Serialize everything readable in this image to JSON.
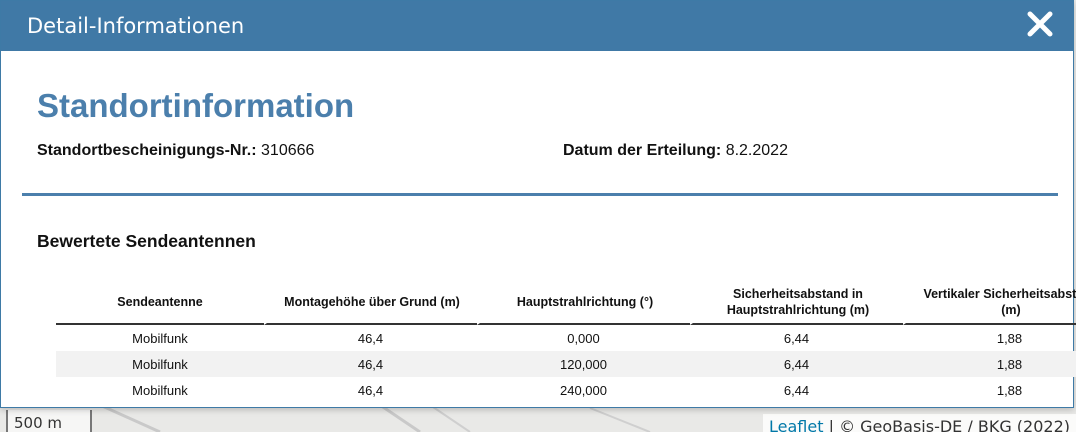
{
  "dialog": {
    "title": "Detail-Informationen",
    "heading": "Standortinformation",
    "certificate_label": "Standortbescheinigungs-Nr.:",
    "certificate_value": "310666",
    "date_label": "Datum der Erteilung:",
    "date_value": "8.2.2022",
    "section_title": "Bewertete Sendeantennen",
    "table": {
      "headers": [
        "Sendeantenne",
        "Montagehöhe über Grund (m)",
        "Hauptstrahlrichtung (°)",
        "Sicherheitsabstand in Hauptstrahlrichtung (m)",
        "Vertikaler Sicherheitsabstand (m)"
      ],
      "rows": [
        [
          "Mobilfunk",
          "46,4",
          "0,000",
          "6,44",
          "1,88"
        ],
        [
          "Mobilfunk",
          "46,4",
          "120,000",
          "6,44",
          "1,88"
        ],
        [
          "Mobilfunk",
          "46,4",
          "240,000",
          "6,44",
          "1,88"
        ]
      ]
    },
    "close_icon": "close-icon",
    "accent_color": "#4079a6"
  },
  "map": {
    "scale_label": "500 m",
    "attribution_link": "Leaflet",
    "attribution_text": " | © GeoBasis-DE / BKG (2022)"
  }
}
